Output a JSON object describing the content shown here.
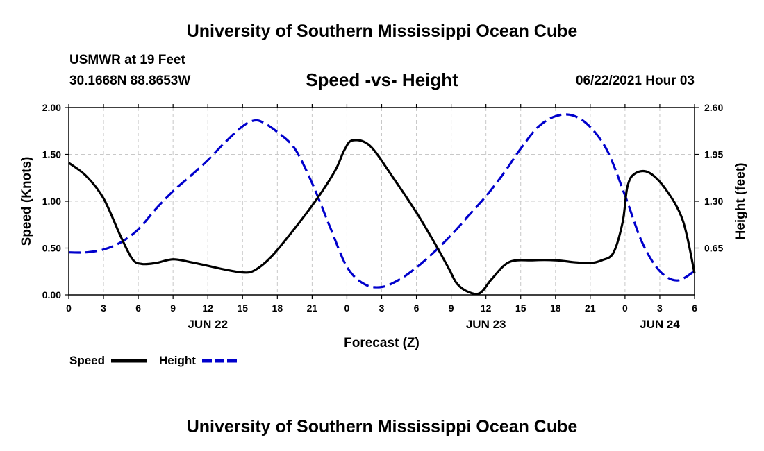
{
  "header": {
    "title_top": "University of Southern Mississippi Ocean Cube",
    "station": "USMWR at 19 Feet",
    "coords": "30.1668N  88.8653W",
    "timestamp": "06/22/2021 Hour 03",
    "title_bottom": "University of Southern Mississippi Ocean Cube"
  },
  "chart_data": {
    "type": "line",
    "title": "Speed -vs- Height",
    "xlabel": "Forecast (Z)",
    "ylabel": "Speed (Knots)",
    "y2label": "Height (feet)",
    "xlim": [
      0,
      54
    ],
    "ylim": [
      0,
      2.0
    ],
    "y2lim": [
      0,
      2.6
    ],
    "grid": true,
    "x_ticks": [
      0,
      3,
      6,
      9,
      12,
      15,
      18,
      21,
      24,
      27,
      30,
      33,
      36,
      39,
      42,
      45,
      48,
      51,
      54
    ],
    "x_tick_labels": [
      "0",
      "3",
      "6",
      "9",
      "12",
      "15",
      "18",
      "21",
      "0",
      "3",
      "6",
      "9",
      "12",
      "15",
      "18",
      "21",
      "0",
      "3",
      "6"
    ],
    "day_labels": [
      {
        "x": 12,
        "label": "JUN 22"
      },
      {
        "x": 36,
        "label": "JUN 23"
      },
      {
        "x": 51,
        "label": "JUN 24"
      }
    ],
    "y_ticks": [
      0,
      0.5,
      1.0,
      1.5,
      2.0
    ],
    "y_tick_labels": [
      "0.00",
      "0.50",
      "1.00",
      "1.50",
      "2.00"
    ],
    "y2_ticks": [
      0.65,
      1.3,
      1.95,
      2.6
    ],
    "y2_tick_labels": [
      "0.65",
      "1.30",
      "1.95",
      "2.60"
    ],
    "series": [
      {
        "name": "Speed",
        "axis": "left",
        "color": "#000000",
        "dash": "solid",
        "x": [
          0,
          1.5,
          3,
          4.5,
          5.5,
          6.3,
          7.5,
          9,
          10.5,
          12,
          13.5,
          15,
          16,
          17.5,
          19.5,
          21.5,
          23,
          23.8,
          24.5,
          26,
          28,
          30,
          31.5,
          32.8,
          33.5,
          34.5,
          35.5,
          36.5,
          38,
          40,
          42,
          43.5,
          45,
          46,
          47,
          47.8,
          48.2,
          48.8,
          50,
          51.5,
          53,
          54
        ],
        "values": [
          1.41,
          1.27,
          1.03,
          0.62,
          0.38,
          0.33,
          0.34,
          0.38,
          0.35,
          0.31,
          0.27,
          0.24,
          0.26,
          0.41,
          0.71,
          1.04,
          1.33,
          1.55,
          1.65,
          1.59,
          1.25,
          0.88,
          0.57,
          0.28,
          0.12,
          0.03,
          0.02,
          0.17,
          0.35,
          0.37,
          0.37,
          0.35,
          0.34,
          0.37,
          0.45,
          0.78,
          1.15,
          1.29,
          1.31,
          1.13,
          0.79,
          0.23
        ]
      },
      {
        "name": "Height",
        "axis": "right",
        "color": "#0000cc",
        "dash": "dashed",
        "x": [
          0,
          1.5,
          3,
          4.5,
          6,
          7.5,
          9,
          10.5,
          12,
          13.5,
          15,
          16,
          16.8,
          18,
          19.5,
          21,
          22.5,
          24,
          25.5,
          27,
          28.5,
          30,
          31.5,
          33,
          34.5,
          36,
          37.5,
          39,
          40.5,
          42,
          43.5,
          45,
          46.5,
          48,
          49.5,
          51,
          52.5,
          54
        ],
        "values": [
          0.59,
          0.59,
          0.63,
          0.73,
          0.91,
          1.19,
          1.44,
          1.65,
          1.87,
          2.12,
          2.34,
          2.42,
          2.39,
          2.26,
          2.03,
          1.55,
          0.96,
          0.39,
          0.15,
          0.11,
          0.21,
          0.38,
          0.59,
          0.83,
          1.1,
          1.37,
          1.68,
          2.03,
          2.33,
          2.48,
          2.49,
          2.33,
          1.99,
          1.38,
          0.72,
          0.33,
          0.2,
          0.33
        ]
      }
    ]
  }
}
